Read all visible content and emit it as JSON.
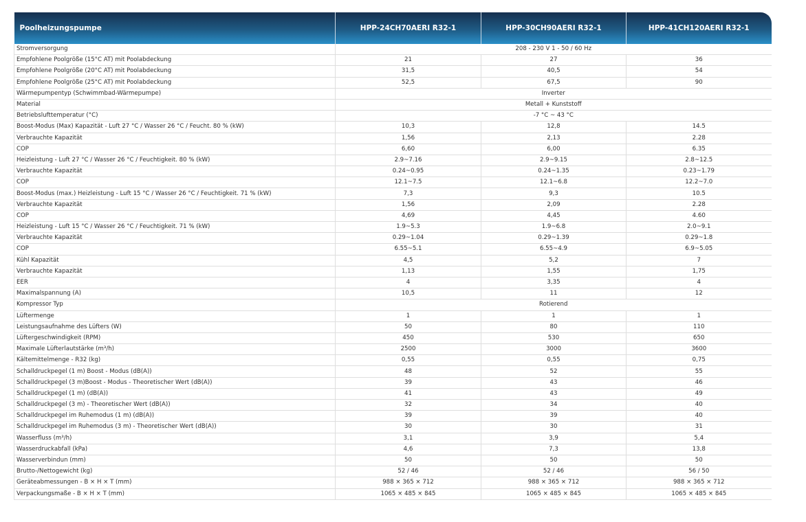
{
  "table": {
    "headers": [
      "Poolheizungspumpe",
      "HPP-24CH70AERI R32-1",
      "HPP-30CH90AERI R32-1",
      "HPP-41CH120AERI R32-1"
    ],
    "rows": [
      {
        "label": "Stromversorgung",
        "merged": "208 - 230 V  1 -  50 / 60 Hz"
      },
      {
        "label": "Empfohlene Poolgröße (15°C AT) mit Poolabdeckung",
        "values": [
          "21",
          "27",
          "36"
        ]
      },
      {
        "label": "Empfohlene Poolgröße (20°C AT) mit Poolabdeckung",
        "values": [
          "31,5",
          "40,5",
          "54"
        ]
      },
      {
        "label": "Empfohlene Poolgröße (25°C AT) mit Poolabdeckung",
        "values": [
          "52,5",
          "67,5",
          "90"
        ]
      },
      {
        "label": "Wärmepumpentyp (Schwimmbad-Wärmepumpe)",
        "merged": "Inverter"
      },
      {
        "label": "Material",
        "merged": "Metall + Kunststoff"
      },
      {
        "label": "Betriebslufttemperatur (°C)",
        "merged": "-7 °C ~ 43 °C"
      },
      {
        "label": "Boost-Modus (Max) Kapazität - Luft 27 °C / Wasser 26 °C / Feucht. 80 % (kW)",
        "values": [
          "10,3",
          "12,8",
          "14.5"
        ]
      },
      {
        "label": "Verbrauchte Kapazität",
        "values": [
          "1,56",
          "2,13",
          "2.28"
        ]
      },
      {
        "label": "COP",
        "values": [
          "6,60",
          "6,00",
          "6.35"
        ]
      },
      {
        "label": "Heizleistung - Luft 27 °C / Wasser 26 °C / Feuchtigkeit. 80 % (kW)",
        "values": [
          "2.9~7.16",
          "2.9~9.15",
          "2.8~12.5"
        ]
      },
      {
        "label": "Verbrauchte Kapazität",
        "values": [
          "0.24~0.95",
          "0.24~1.35",
          "0.23~1.79"
        ]
      },
      {
        "label": "COP",
        "values": [
          "12.1~7.5",
          "12.1~6.8",
          "12.2~7.0"
        ]
      },
      {
        "label": "Boost-Modus (max.) Heizleistung - Luft 15 °C / Wasser 26 °C / Feuchtigkeit. 71 % (kW)",
        "values": [
          "7,3",
          "9,3",
          "10.5"
        ]
      },
      {
        "label": "Verbrauchte Kapazität",
        "values": [
          "1,56",
          "2,09",
          "2.28"
        ]
      },
      {
        "label": "COP",
        "values": [
          "4,69",
          "4,45",
          "4.60"
        ]
      },
      {
        "label": "Heizleistung - Luft 15 °C / Wasser 26 °C / Feuchtigkeit. 71 % (kW)",
        "values": [
          "1.9~5.3",
          "1.9~6.8",
          "2.0~9.1"
        ]
      },
      {
        "label": "Verbrauchte Kapazität",
        "values": [
          "0.29~1.04",
          "0.29~1.39",
          "0.29~1.8"
        ]
      },
      {
        "label": "COP",
        "values": [
          "6.55~5.1",
          "6.55~4.9",
          "6.9~5.05"
        ]
      },
      {
        "label": "Kühl Kapazität",
        "values": [
          "4,5",
          "5,2",
          "7"
        ]
      },
      {
        "label": "Verbrauchte Kapazität",
        "values": [
          "1,13",
          "1,55",
          "1,75"
        ]
      },
      {
        "label": "EER",
        "values": [
          "4",
          "3,35",
          "4"
        ]
      },
      {
        "label": "Maximalspannung (A)",
        "values": [
          "10,5",
          "11",
          "12"
        ]
      },
      {
        "label": "Kompressor Typ",
        "merged": "Rotierend"
      },
      {
        "label": "Lüftermenge",
        "values": [
          "1",
          "1",
          "1"
        ]
      },
      {
        "label": "Leistungsaufnahme des Lüfters (W)",
        "values": [
          "50",
          "80",
          "110"
        ]
      },
      {
        "label": "Lüftergeschwindigkeit (RPM)",
        "values": [
          "450",
          "530",
          "650"
        ]
      },
      {
        "label": "Maximale Lüfterlautstärke (m³/h)",
        "values": [
          "2500",
          "3000",
          "3600"
        ]
      },
      {
        "label": "Kältemittelmenge - R32 (kg)",
        "values": [
          "0,55",
          "0,55",
          "0,75"
        ]
      },
      {
        "label": "Schalldruckpegel (1 m) Boost - Modus (dB(A))",
        "values": [
          "48",
          "52",
          "55"
        ]
      },
      {
        "label": "Schalldruckpegel (3 m)Boost - Modus - Theoretischer Wert (dB(A))",
        "values": [
          "39",
          "43",
          "46"
        ]
      },
      {
        "label": "Schalldruckpegel (1 m) (dB(A))",
        "values": [
          "41",
          "43",
          "49"
        ]
      },
      {
        "label": "Schalldruckpegel (3 m) - Theoretischer Wert (dB(A))",
        "values": [
          "32",
          "34",
          "40"
        ]
      },
      {
        "label": "Schalldruckpegel im Ruhemodus (1 m) (dB(A))",
        "values": [
          "39",
          "39",
          "40"
        ]
      },
      {
        "label": "Schalldruckpegel im Ruhemodus (3 m) - Theoretischer Wert (dB(A))",
        "values": [
          "30",
          "30",
          "31"
        ]
      },
      {
        "label": "Wasserfluss (m³/h)",
        "values": [
          "3,1",
          "3,9",
          "5,4"
        ]
      },
      {
        "label": "Wasserdruckabfall (kPa)",
        "values": [
          "4,6",
          "7,3",
          "13,8"
        ]
      },
      {
        "label": "Wasserverbindun (mm)",
        "values": [
          "50",
          "50",
          "50"
        ]
      },
      {
        "label": "Brutto-/Nettogewicht (kg)",
        "values": [
          "52 / 46",
          "52 / 46",
          "56 / 50"
        ]
      },
      {
        "label": "Geräteabmessungen - B × H × T (mm)",
        "values": [
          "988 × 365 × 712",
          "988 × 365 × 712",
          "988 × 365 × 712"
        ]
      },
      {
        "label": "Verpackungsmaße - B × H × T (mm)",
        "values": [
          "1065 × 485 × 845",
          "1065 × 485 × 845",
          "1065 × 485 × 845"
        ]
      }
    ]
  }
}
